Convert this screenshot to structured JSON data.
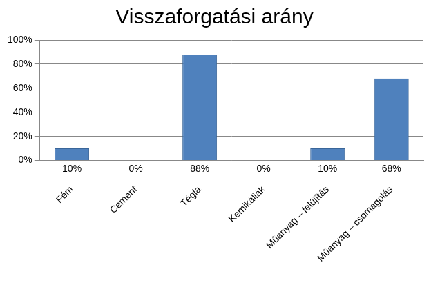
{
  "chart_data": {
    "type": "bar",
    "title": "Visszaforgatási arány",
    "categories": [
      "Fém",
      "Cement",
      "Tégla",
      "Kemikáliák",
      "Műanyag – felújítás",
      "Műanyag – csomagolás"
    ],
    "values": [
      10,
      0,
      88,
      0,
      10,
      68
    ],
    "value_labels": [
      "10%",
      "0%",
      "88%",
      "0%",
      "10%",
      "68%"
    ],
    "data_labels": true,
    "color": "#4f81bd",
    "ylim": [
      0,
      100
    ],
    "yticks": [
      {
        "value": 0,
        "label": "0%"
      },
      {
        "value": 20,
        "label": "20%"
      },
      {
        "value": 40,
        "label": "40%"
      },
      {
        "value": 60,
        "label": "60%"
      },
      {
        "value": 80,
        "label": "80%"
      },
      {
        "value": 100,
        "label": "100%"
      }
    ],
    "grid": true
  }
}
